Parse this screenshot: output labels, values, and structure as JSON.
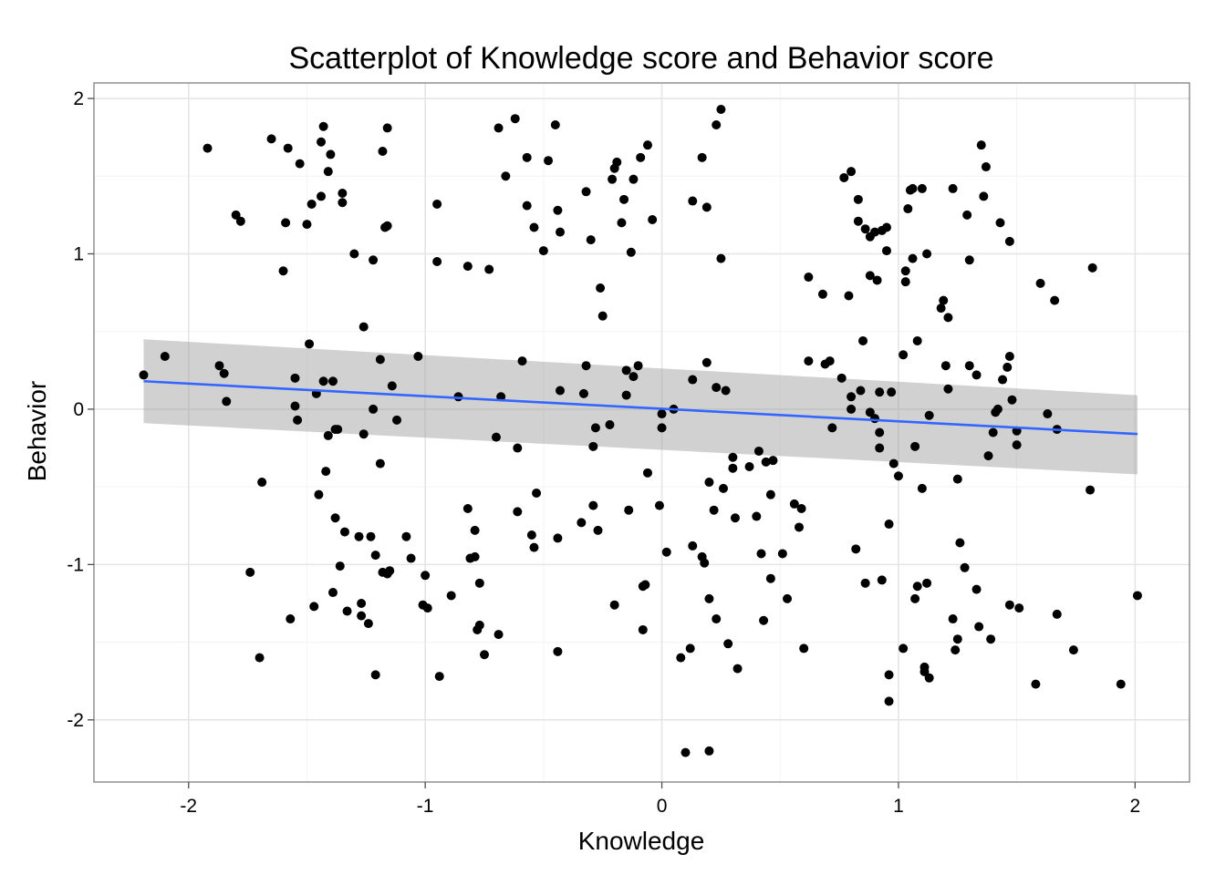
{
  "chart_data": {
    "type": "scatter",
    "title": "Scatterplot of Knowledge score and Behavior score",
    "xlabel": "Knowledge",
    "ylabel": "Behavior",
    "xlim": [
      -2.4,
      2.23
    ],
    "ylim": [
      -2.4,
      2.1
    ],
    "x_ticks": [
      -2,
      -1,
      0,
      1,
      2
    ],
    "y_ticks": [
      -2,
      -1,
      0,
      1,
      2
    ],
    "x_tick_labels": [
      "-2",
      "-1",
      "0",
      "1",
      "2"
    ],
    "y_tick_labels": [
      "-2",
      "-1",
      "0",
      "1",
      "2"
    ],
    "grid": true,
    "theme": "bw",
    "colors": {
      "points": "#000000",
      "fit_line": "#3366ff",
      "ribbon": "#999999",
      "grid": "#e5e5e5",
      "panel_border": "#7f7f7f"
    },
    "fit": {
      "method": "linear",
      "x": [
        -2.19,
        2.01
      ],
      "y": [
        0.18,
        -0.16
      ],
      "ci_lower": [
        -0.09,
        -0.42
      ],
      "ci_upper": [
        0.45,
        0.09
      ]
    },
    "points": [
      [
        -2.19,
        0.22
      ],
      [
        -2.1,
        0.34
      ],
      [
        -1.92,
        1.68
      ],
      [
        -1.87,
        0.28
      ],
      [
        -1.85,
        0.23
      ],
      [
        -1.84,
        0.05
      ],
      [
        -1.8,
        1.25
      ],
      [
        -1.78,
        1.21
      ],
      [
        -1.74,
        -1.05
      ],
      [
        -1.7,
        -1.6
      ],
      [
        -1.69,
        -0.47
      ],
      [
        -1.65,
        1.74
      ],
      [
        -1.6,
        0.89
      ],
      [
        -1.59,
        1.2
      ],
      [
        -1.58,
        1.68
      ],
      [
        -1.57,
        -1.35
      ],
      [
        -1.55,
        0.2
      ],
      [
        -1.55,
        0.02
      ],
      [
        -1.54,
        -0.07
      ],
      [
        -1.53,
        1.58
      ],
      [
        -1.5,
        1.19
      ],
      [
        -1.49,
        0.42
      ],
      [
        -1.48,
        1.32
      ],
      [
        -1.47,
        -1.27
      ],
      [
        -1.46,
        0.1
      ],
      [
        -1.45,
        -0.55
      ],
      [
        -1.44,
        1.72
      ],
      [
        -1.44,
        1.37
      ],
      [
        -1.43,
        1.82
      ],
      [
        -1.43,
        0.18
      ],
      [
        -1.42,
        -0.4
      ],
      [
        -1.41,
        1.53
      ],
      [
        -1.41,
        -0.17
      ],
      [
        -1.4,
        1.64
      ],
      [
        -1.39,
        0.18
      ],
      [
        -1.39,
        -1.18
      ],
      [
        -1.38,
        -0.7
      ],
      [
        -1.38,
        -0.13
      ],
      [
        -1.37,
        -0.13
      ],
      [
        -1.36,
        -1.01
      ],
      [
        -1.35,
        1.39
      ],
      [
        -1.35,
        1.33
      ],
      [
        -1.34,
        -0.79
      ],
      [
        -1.33,
        -1.3
      ],
      [
        -1.3,
        1.0
      ],
      [
        -1.28,
        -0.82
      ],
      [
        -1.27,
        -1.25
      ],
      [
        -1.27,
        -1.33
      ],
      [
        -1.26,
        -0.16
      ],
      [
        -1.26,
        0.53
      ],
      [
        -1.24,
        -1.38
      ],
      [
        -1.23,
        -0.82
      ],
      [
        -1.22,
        0.0
      ],
      [
        -1.22,
        0.96
      ],
      [
        -1.21,
        -0.94
      ],
      [
        -1.21,
        -1.71
      ],
      [
        -1.19,
        -0.35
      ],
      [
        -1.19,
        0.32
      ],
      [
        -1.18,
        1.66
      ],
      [
        -1.18,
        -1.05
      ],
      [
        -1.17,
        1.17
      ],
      [
        -1.16,
        1.18
      ],
      [
        -1.16,
        1.81
      ],
      [
        -1.16,
        -1.06
      ],
      [
        -1.15,
        -1.04
      ],
      [
        -1.14,
        0.15
      ],
      [
        -1.12,
        -0.07
      ],
      [
        -1.08,
        -0.82
      ],
      [
        -1.06,
        -0.96
      ],
      [
        -1.03,
        0.34
      ],
      [
        -1.01,
        -1.26
      ],
      [
        -1.0,
        -1.07
      ],
      [
        -0.99,
        -1.28
      ],
      [
        -0.95,
        0.95
      ],
      [
        -0.95,
        1.32
      ],
      [
        -0.94,
        -1.72
      ],
      [
        -0.89,
        -1.2
      ],
      [
        -0.86,
        0.08
      ],
      [
        -0.82,
        -0.64
      ],
      [
        -0.82,
        0.92
      ],
      [
        -0.81,
        -0.96
      ],
      [
        -0.79,
        -0.95
      ],
      [
        -0.79,
        -0.78
      ],
      [
        -0.78,
        -1.42
      ],
      [
        -0.77,
        -1.12
      ],
      [
        -0.77,
        -1.39
      ],
      [
        -0.75,
        -1.58
      ],
      [
        -0.73,
        0.9
      ],
      [
        -0.7,
        -0.18
      ],
      [
        -0.69,
        1.81
      ],
      [
        -0.69,
        -1.45
      ],
      [
        -0.68,
        0.08
      ],
      [
        -0.66,
        1.5
      ],
      [
        -0.62,
        1.87
      ],
      [
        -0.61,
        -0.25
      ],
      [
        -0.61,
        -0.66
      ],
      [
        -0.59,
        0.31
      ],
      [
        -0.57,
        1.62
      ],
      [
        -0.57,
        1.31
      ],
      [
        -0.55,
        -0.81
      ],
      [
        -0.54,
        1.17
      ],
      [
        -0.54,
        -0.89
      ],
      [
        -0.53,
        -0.54
      ],
      [
        -0.5,
        1.02
      ],
      [
        -0.48,
        1.6
      ],
      [
        -0.45,
        1.83
      ],
      [
        -0.44,
        1.28
      ],
      [
        -0.44,
        -0.83
      ],
      [
        -0.44,
        -1.56
      ],
      [
        -0.43,
        0.12
      ],
      [
        -0.43,
        1.14
      ],
      [
        -0.34,
        -0.73
      ],
      [
        -0.33,
        0.1
      ],
      [
        -0.32,
        1.4
      ],
      [
        -0.32,
        0.28
      ],
      [
        -0.3,
        1.09
      ],
      [
        -0.29,
        -0.62
      ],
      [
        -0.29,
        -0.24
      ],
      [
        -0.28,
        -0.12
      ],
      [
        -0.27,
        -0.78
      ],
      [
        -0.26,
        0.78
      ],
      [
        -0.25,
        0.6
      ],
      [
        -0.22,
        -0.1
      ],
      [
        -0.21,
        1.48
      ],
      [
        -0.2,
        1.55
      ],
      [
        -0.2,
        -1.26
      ],
      [
        -0.19,
        1.59
      ],
      [
        -0.17,
        1.2
      ],
      [
        -0.16,
        1.35
      ],
      [
        -0.15,
        0.25
      ],
      [
        -0.15,
        0.09
      ],
      [
        -0.14,
        -0.65
      ],
      [
        -0.13,
        1.01
      ],
      [
        -0.12,
        1.48
      ],
      [
        -0.12,
        0.21
      ],
      [
        -0.1,
        0.28
      ],
      [
        -0.09,
        1.62
      ],
      [
        -0.08,
        -1.14
      ],
      [
        -0.08,
        -1.42
      ],
      [
        -0.07,
        -1.13
      ],
      [
        -0.06,
        1.7
      ],
      [
        -0.06,
        -0.41
      ],
      [
        -0.04,
        1.22
      ],
      [
        -0.01,
        -0.62
      ],
      [
        0.0,
        -0.03
      ],
      [
        0.0,
        -0.12
      ],
      [
        0.02,
        -0.92
      ],
      [
        0.05,
        -0.0
      ],
      [
        0.08,
        -1.6
      ],
      [
        0.1,
        -2.21
      ],
      [
        0.12,
        -1.54
      ],
      [
        0.13,
        -0.88
      ],
      [
        0.13,
        1.34
      ],
      [
        0.13,
        0.19
      ],
      [
        0.17,
        1.62
      ],
      [
        0.17,
        -0.95
      ],
      [
        0.18,
        -0.99
      ],
      [
        0.19,
        1.3
      ],
      [
        0.19,
        0.3
      ],
      [
        0.2,
        -0.47
      ],
      [
        0.2,
        -2.2
      ],
      [
        0.2,
        -1.22
      ],
      [
        0.22,
        -0.65
      ],
      [
        0.23,
        1.83
      ],
      [
        0.23,
        -1.35
      ],
      [
        0.23,
        0.14
      ],
      [
        0.25,
        1.93
      ],
      [
        0.25,
        0.97
      ],
      [
        0.26,
        -0.51
      ],
      [
        0.27,
        0.12
      ],
      [
        0.28,
        -1.51
      ],
      [
        0.3,
        -0.38
      ],
      [
        0.3,
        -0.31
      ],
      [
        0.31,
        -0.7
      ],
      [
        0.32,
        -1.67
      ],
      [
        0.37,
        -0.37
      ],
      [
        0.4,
        -0.69
      ],
      [
        0.41,
        -0.27
      ],
      [
        0.42,
        -0.93
      ],
      [
        0.43,
        -1.36
      ],
      [
        0.44,
        -0.34
      ],
      [
        0.46,
        -0.55
      ],
      [
        0.46,
        -1.09
      ],
      [
        0.47,
        -0.33
      ],
      [
        0.51,
        -0.93
      ],
      [
        0.53,
        -1.22
      ],
      [
        0.56,
        -0.61
      ],
      [
        0.58,
        -0.76
      ],
      [
        0.59,
        -0.64
      ],
      [
        0.6,
        -1.54
      ],
      [
        0.62,
        0.85
      ],
      [
        0.62,
        0.31
      ],
      [
        0.68,
        0.74
      ],
      [
        0.69,
        0.29
      ],
      [
        0.71,
        0.31
      ],
      [
        0.72,
        -0.12
      ],
      [
        0.76,
        0.2
      ],
      [
        0.77,
        1.49
      ],
      [
        0.79,
        0.73
      ],
      [
        0.8,
        1.53
      ],
      [
        0.8,
        0.0
      ],
      [
        0.8,
        0.08
      ],
      [
        0.82,
        -0.9
      ],
      [
        0.83,
        1.35
      ],
      [
        0.83,
        1.21
      ],
      [
        0.84,
        0.12
      ],
      [
        0.85,
        0.44
      ],
      [
        0.86,
        1.16
      ],
      [
        0.86,
        -1.12
      ],
      [
        0.88,
        1.11
      ],
      [
        0.88,
        -0.02
      ],
      [
        0.88,
        0.86
      ],
      [
        0.9,
        -0.06
      ],
      [
        0.9,
        1.14
      ],
      [
        0.91,
        0.83
      ],
      [
        0.92,
        0.11
      ],
      [
        0.92,
        -0.15
      ],
      [
        0.92,
        -0.25
      ],
      [
        0.93,
        1.15
      ],
      [
        0.93,
        -1.1
      ],
      [
        0.95,
        1.17
      ],
      [
        0.95,
        1.02
      ],
      [
        0.96,
        -1.71
      ],
      [
        0.96,
        -0.74
      ],
      [
        0.96,
        -1.88
      ],
      [
        0.97,
        0.11
      ],
      [
        0.98,
        -0.35
      ],
      [
        1.0,
        -0.43
      ],
      [
        1.02,
        0.35
      ],
      [
        1.02,
        -1.54
      ],
      [
        1.03,
        0.89
      ],
      [
        1.03,
        0.82
      ],
      [
        1.04,
        1.29
      ],
      [
        1.05,
        1.41
      ],
      [
        1.06,
        1.42
      ],
      [
        1.06,
        0.97
      ],
      [
        1.07,
        -0.24
      ],
      [
        1.07,
        -1.22
      ],
      [
        1.08,
        -1.14
      ],
      [
        1.08,
        0.44
      ],
      [
        1.1,
        1.42
      ],
      [
        1.1,
        -0.51
      ],
      [
        1.11,
        -1.69
      ],
      [
        1.11,
        -1.66
      ],
      [
        1.12,
        1.0
      ],
      [
        1.12,
        -1.12
      ],
      [
        1.13,
        -1.73
      ],
      [
        1.13,
        -0.04
      ],
      [
        1.18,
        0.65
      ],
      [
        1.19,
        0.7
      ],
      [
        1.2,
        0.28
      ],
      [
        1.21,
        0.59
      ],
      [
        1.21,
        0.13
      ],
      [
        1.23,
        1.42
      ],
      [
        1.23,
        -1.35
      ],
      [
        1.24,
        -1.55
      ],
      [
        1.25,
        -1.48
      ],
      [
        1.25,
        -0.45
      ],
      [
        1.26,
        -0.86
      ],
      [
        1.28,
        -1.02
      ],
      [
        1.29,
        1.25
      ],
      [
        1.3,
        0.96
      ],
      [
        1.3,
        0.28
      ],
      [
        1.33,
        0.22
      ],
      [
        1.33,
        -1.16
      ],
      [
        1.34,
        -1.4
      ],
      [
        1.35,
        1.7
      ],
      [
        1.36,
        1.37
      ],
      [
        1.37,
        1.56
      ],
      [
        1.38,
        -0.3
      ],
      [
        1.39,
        -1.48
      ],
      [
        1.4,
        -0.15
      ],
      [
        1.41,
        -0.02
      ],
      [
        1.42,
        0.0
      ],
      [
        1.43,
        1.2
      ],
      [
        1.44,
        0.19
      ],
      [
        1.46,
        0.27
      ],
      [
        1.47,
        0.34
      ],
      [
        1.47,
        1.08
      ],
      [
        1.47,
        -1.26
      ],
      [
        1.48,
        0.06
      ],
      [
        1.5,
        -0.14
      ],
      [
        1.5,
        -0.23
      ],
      [
        1.51,
        -1.28
      ],
      [
        1.58,
        -1.77
      ],
      [
        1.6,
        0.81
      ],
      [
        1.63,
        -0.03
      ],
      [
        1.66,
        0.7
      ],
      [
        1.67,
        -0.13
      ],
      [
        1.67,
        -1.32
      ],
      [
        1.74,
        -1.55
      ],
      [
        1.81,
        -0.52
      ],
      [
        1.82,
        0.91
      ],
      [
        1.94,
        -1.77
      ],
      [
        2.01,
        -1.2
      ]
    ]
  }
}
